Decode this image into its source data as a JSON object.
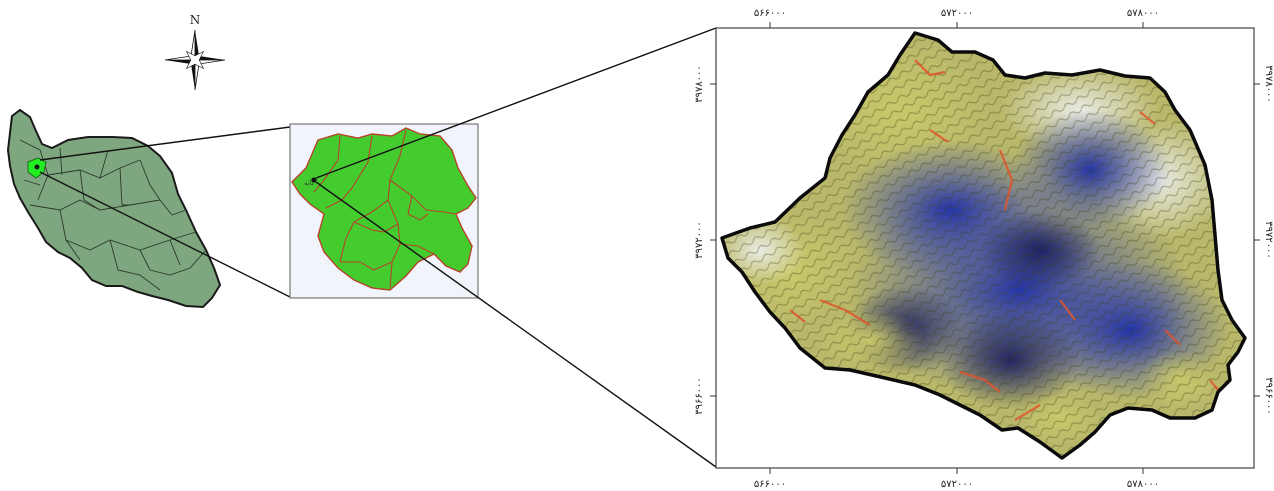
{
  "north_arrow": {
    "letter": "N",
    "icon": "compass-rose-icon"
  },
  "province_map": {
    "city_label": "بانه"
  },
  "detail_map": {
    "x_tick_labels": [
      "۵۶۶۰۰۰",
      "۵۷۲۰۰۰",
      "۵۷۸۰۰۰"
    ],
    "y_tick_labels": [
      "۳۹۷۸۰۰۰",
      "۳۹۷۲۰۰۰",
      "۳۹۶۶۰۰۰"
    ]
  },
  "colors": {
    "country_fill": "#7fa77f",
    "province_fill": "#44cc2e",
    "province_border": "#b5432a",
    "study_area_highlight": "#22ee22",
    "satellite_blue": "#2e3bb5",
    "satellite_green": "#c4c35a",
    "satellite_red": "#e0542c"
  }
}
